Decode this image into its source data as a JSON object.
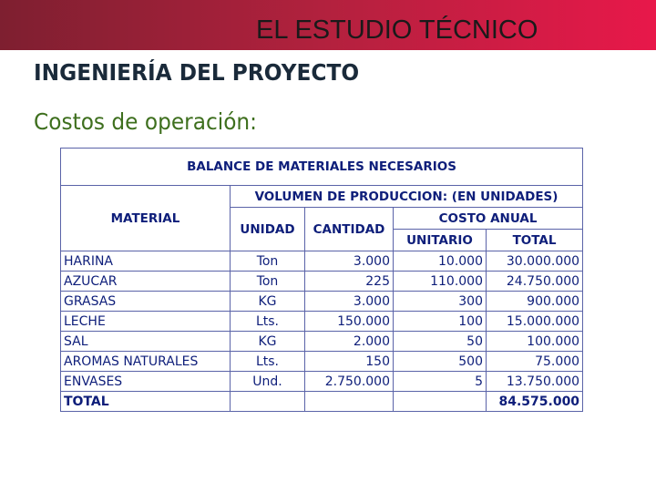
{
  "banner": {
    "title": "EL ESTUDIO TÉCNICO"
  },
  "heading": "INGENIERÍA DEL PROYECTO",
  "subheading": "Costos de operación:",
  "table": {
    "title": "BALANCE DE MATERIALES NECESARIOS",
    "material_header": "MATERIAL",
    "volumen_header": "VOLUMEN DE PRODUCCION: (EN UNIDADES)",
    "unidad_header": "UNIDAD",
    "cantidad_header": "CANTIDAD",
    "costo_anual_header": "COSTO ANUAL",
    "unitario_header": "UNITARIO",
    "total_header": "TOTAL",
    "rows": [
      {
        "material": "HARINA",
        "unidad": "Ton",
        "cantidad": "3.000",
        "unitario": "10.000",
        "total": "30.000.000"
      },
      {
        "material": "AZUCAR",
        "unidad": "Ton",
        "cantidad": "225",
        "unitario": "110.000",
        "total": "24.750.000"
      },
      {
        "material": "GRASAS",
        "unidad": "KG",
        "cantidad": "3.000",
        "unitario": "300",
        "total": "900.000"
      },
      {
        "material": "LECHE",
        "unidad": "Lts.",
        "cantidad": "150.000",
        "unitario": "100",
        "total": "15.000.000"
      },
      {
        "material": "SAL",
        "unidad": "KG",
        "cantidad": "2.000",
        "unitario": "50",
        "total": "100.000"
      },
      {
        "material": "AROMAS NATURALES",
        "unidad": "Lts.",
        "cantidad": "150",
        "unitario": "500",
        "total": "75.000"
      },
      {
        "material": "ENVASES",
        "unidad": "Und.",
        "cantidad": "2.750.000",
        "unitario": "5",
        "total": "13.750.000"
      }
    ],
    "total_label": "TOTAL",
    "grand_total": "84.575.000"
  }
}
